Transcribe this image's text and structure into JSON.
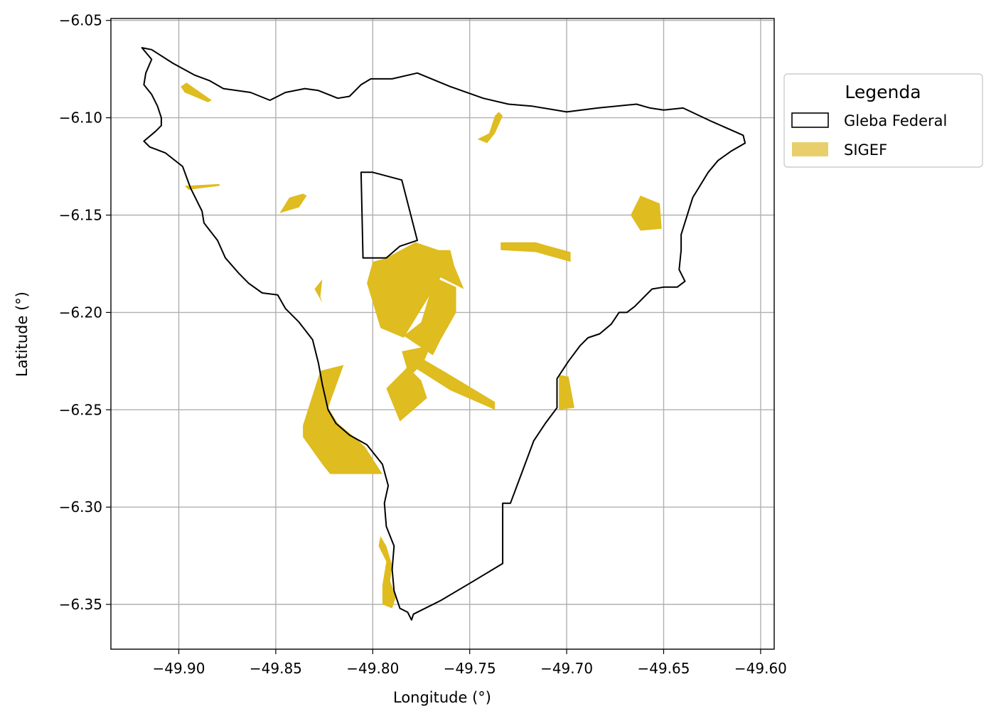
{
  "chart_data": {
    "type": "map",
    "xlabel": "Longitude (°)",
    "ylabel": "Latitude (°)",
    "xlim": [
      -49.935,
      -49.593
    ],
    "ylim": [
      -6.373,
      -6.049
    ],
    "xticks": [
      -49.9,
      -49.85,
      -49.8,
      -49.75,
      -49.7,
      -49.65,
      -49.6
    ],
    "xtick_labels": [
      "−49.90",
      "−49.85",
      "−49.80",
      "−49.75",
      "−49.70",
      "−49.65",
      "−49.60"
    ],
    "yticks": [
      -6.05,
      -6.1,
      -6.15,
      -6.2,
      -6.25,
      -6.3,
      -6.35
    ],
    "ytick_labels": [
      "−6.05",
      "−6.10",
      "−6.15",
      "−6.20",
      "−6.25",
      "−6.30",
      "−6.35"
    ],
    "grid": true,
    "legend": {
      "title": "Legenda",
      "placement": "outside-right-top",
      "entries": [
        {
          "label": "Gleba Federal",
          "style": "outline",
          "edge_color": "#000000",
          "fill_color": "#ffffff"
        },
        {
          "label": "SIGEF",
          "style": "fill",
          "fill_color": "#e8cf6c"
        }
      ]
    },
    "colors": {
      "gleba_edge": "#000000",
      "sigef_fill": "#dfbc1f",
      "grid": "#b0b0b0"
    },
    "gleba_federal": [
      {
        "name": "main",
        "coords": [
          [
            -49.919,
            -6.064
          ],
          [
            -49.914,
            -6.065
          ],
          [
            -49.903,
            -6.072
          ],
          [
            -49.892,
            -6.078
          ],
          [
            -49.884,
            -6.081
          ],
          [
            -49.877,
            -6.085
          ],
          [
            -49.863,
            -6.087
          ],
          [
            -49.853,
            -6.091
          ],
          [
            -49.845,
            -6.087
          ],
          [
            -49.835,
            -6.085
          ],
          [
            -49.828,
            -6.086
          ],
          [
            -49.818,
            -6.09
          ],
          [
            -49.812,
            -6.089
          ],
          [
            -49.806,
            -6.083
          ],
          [
            -49.801,
            -6.08
          ],
          [
            -49.79,
            -6.08
          ],
          [
            -49.777,
            -6.077
          ],
          [
            -49.76,
            -6.084
          ],
          [
            -49.743,
            -6.09
          ],
          [
            -49.73,
            -6.093
          ],
          [
            -49.718,
            -6.094
          ],
          [
            -49.7,
            -6.097
          ],
          [
            -49.684,
            -6.095
          ],
          [
            -49.664,
            -6.093
          ],
          [
            -49.657,
            -6.095
          ],
          [
            -49.65,
            -6.096
          ],
          [
            -49.64,
            -6.095
          ],
          [
            -49.625,
            -6.102
          ],
          [
            -49.609,
            -6.109
          ],
          [
            -49.608,
            -6.113
          ],
          [
            -49.615,
            -6.117
          ],
          [
            -49.622,
            -6.122
          ],
          [
            -49.627,
            -6.128
          ],
          [
            -49.635,
            -6.141
          ],
          [
            -49.641,
            -6.16
          ],
          [
            -49.641,
            -6.168
          ],
          [
            -49.642,
            -6.178
          ],
          [
            -49.639,
            -6.184
          ],
          [
            -49.643,
            -6.187
          ],
          [
            -49.65,
            -6.187
          ],
          [
            -49.656,
            -6.188
          ],
          [
            -49.661,
            -6.193
          ],
          [
            -49.665,
            -6.197
          ],
          [
            -49.669,
            -6.2
          ],
          [
            -49.673,
            -6.2
          ],
          [
            -49.677,
            -6.206
          ],
          [
            -49.683,
            -6.211
          ],
          [
            -49.689,
            -6.213
          ],
          [
            -49.693,
            -6.217
          ],
          [
            -49.699,
            -6.225
          ],
          [
            -49.705,
            -6.234
          ],
          [
            -49.705,
            -6.249
          ],
          [
            -49.711,
            -6.257
          ],
          [
            -49.717,
            -6.266
          ],
          [
            -49.723,
            -6.282
          ],
          [
            -49.729,
            -6.298
          ],
          [
            -49.733,
            -6.298
          ],
          [
            -49.733,
            -6.329
          ],
          [
            -49.748,
            -6.338
          ],
          [
            -49.765,
            -6.348
          ],
          [
            -49.779,
            -6.355
          ],
          [
            -49.78,
            -6.358
          ],
          [
            -49.782,
            -6.354
          ],
          [
            -49.786,
            -6.352
          ],
          [
            -49.789,
            -6.343
          ],
          [
            -49.79,
            -6.332
          ],
          [
            -49.789,
            -6.32
          ],
          [
            -49.793,
            -6.31
          ],
          [
            -49.794,
            -6.298
          ],
          [
            -49.792,
            -6.289
          ],
          [
            -49.795,
            -6.278
          ],
          [
            -49.803,
            -6.268
          ],
          [
            -49.812,
            -6.263
          ],
          [
            -49.819,
            -6.257
          ],
          [
            -49.823,
            -6.25
          ],
          [
            -49.826,
            -6.237
          ],
          [
            -49.828,
            -6.226
          ],
          [
            -49.831,
            -6.214
          ],
          [
            -49.838,
            -6.205
          ],
          [
            -49.845,
            -6.198
          ],
          [
            -49.849,
            -6.191
          ],
          [
            -49.857,
            -6.19
          ],
          [
            -49.864,
            -6.185
          ],
          [
            -49.869,
            -6.18
          ],
          [
            -49.876,
            -6.172
          ],
          [
            -49.88,
            -6.163
          ],
          [
            -49.887,
            -6.154
          ],
          [
            -49.888,
            -6.148
          ],
          [
            -49.894,
            -6.136
          ],
          [
            -49.898,
            -6.125
          ],
          [
            -49.907,
            -6.118
          ],
          [
            -49.915,
            -6.115
          ],
          [
            -49.918,
            -6.112
          ],
          [
            -49.912,
            -6.107
          ],
          [
            -49.909,
            -6.104
          ],
          [
            -49.909,
            -6.1
          ],
          [
            -49.911,
            -6.094
          ],
          [
            -49.914,
            -6.088
          ],
          [
            -49.918,
            -6.083
          ],
          [
            -49.917,
            -6.077
          ],
          [
            -49.914,
            -6.07
          ],
          [
            -49.919,
            -6.064
          ]
        ]
      },
      {
        "name": "north-enclave",
        "coords": [
          [
            -49.806,
            -6.128
          ],
          [
            -49.8,
            -6.128
          ],
          [
            -49.785,
            -6.132
          ],
          [
            -49.777,
            -6.163
          ],
          [
            -49.786,
            -6.166
          ],
          [
            -49.793,
            -6.172
          ],
          [
            -49.805,
            -6.172
          ],
          [
            -49.806,
            -6.128
          ]
        ]
      }
    ],
    "sigef": [
      {
        "coords": [
          [
            -49.899,
            -6.084
          ],
          [
            -49.896,
            -6.082
          ],
          [
            -49.883,
            -6.091
          ],
          [
            -49.885,
            -6.092
          ],
          [
            -49.897,
            -6.087
          ]
        ]
      },
      {
        "coords": [
          [
            -49.74,
            -6.108
          ],
          [
            -49.737,
            -6.099
          ],
          [
            -49.735,
            -6.097
          ],
          [
            -49.733,
            -6.099
          ],
          [
            -49.737,
            -6.108
          ],
          [
            -49.741,
            -6.113
          ],
          [
            -49.746,
            -6.111
          ]
        ]
      },
      {
        "coords": [
          [
            -49.897,
            -6.135
          ],
          [
            -49.879,
            -6.134
          ],
          [
            -49.879,
            -6.135
          ],
          [
            -49.895,
            -6.137
          ]
        ]
      },
      {
        "coords": [
          [
            -49.848,
            -6.149
          ],
          [
            -49.843,
            -6.141
          ],
          [
            -49.836,
            -6.139
          ],
          [
            -49.834,
            -6.14
          ],
          [
            -49.838,
            -6.146
          ]
        ]
      },
      {
        "coords": [
          [
            -49.662,
            -6.14
          ],
          [
            -49.652,
            -6.144
          ],
          [
            -49.651,
            -6.157
          ],
          [
            -49.662,
            -6.158
          ],
          [
            -49.667,
            -6.15
          ]
        ]
      },
      {
        "coords": [
          [
            -49.734,
            -6.164
          ],
          [
            -49.716,
            -6.164
          ],
          [
            -49.698,
            -6.169
          ],
          [
            -49.698,
            -6.174
          ],
          [
            -49.716,
            -6.169
          ],
          [
            -49.734,
            -6.168
          ]
        ]
      },
      {
        "coords": [
          [
            -49.826,
            -6.183
          ],
          [
            -49.83,
            -6.188
          ],
          [
            -49.826,
            -6.195
          ],
          [
            -49.827,
            -6.192
          ]
        ]
      },
      {
        "coords": [
          [
            -49.793,
            -6.172
          ],
          [
            -49.778,
            -6.164
          ],
          [
            -49.766,
            -6.168
          ],
          [
            -49.76,
            -6.168
          ],
          [
            -49.758,
            -6.176
          ],
          [
            -49.753,
            -6.188
          ],
          [
            -49.765,
            -6.182
          ],
          [
            -49.784,
            -6.213
          ],
          [
            -49.796,
            -6.208
          ],
          [
            -49.803,
            -6.185
          ],
          [
            -49.8,
            -6.174
          ]
        ]
      },
      {
        "coords": [
          [
            -49.768,
            -6.182
          ],
          [
            -49.757,
            -6.187
          ],
          [
            -49.757,
            -6.2
          ],
          [
            -49.765,
            -6.214
          ],
          [
            -49.769,
            -6.222
          ],
          [
            -49.784,
            -6.212
          ],
          [
            -49.775,
            -6.205
          ]
        ]
      },
      {
        "coords": [
          [
            -49.785,
            -6.22
          ],
          [
            -49.77,
            -6.217
          ],
          [
            -49.774,
            -6.226
          ],
          [
            -49.779,
            -6.231
          ],
          [
            -49.782,
            -6.23
          ]
        ]
      },
      {
        "coords": [
          [
            -49.779,
            -6.228
          ],
          [
            -49.774,
            -6.224
          ],
          [
            -49.762,
            -6.231
          ],
          [
            -49.737,
            -6.246
          ],
          [
            -49.737,
            -6.25
          ],
          [
            -49.76,
            -6.24
          ]
        ]
      },
      {
        "coords": [
          [
            -49.782,
            -6.228
          ],
          [
            -49.793,
            -6.239
          ],
          [
            -49.786,
            -6.256
          ],
          [
            -49.772,
            -6.244
          ],
          [
            -49.775,
            -6.235
          ]
        ]
      },
      {
        "coords": [
          [
            -49.704,
            -6.232
          ],
          [
            -49.699,
            -6.233
          ],
          [
            -49.696,
            -6.249
          ],
          [
            -49.704,
            -6.25
          ]
        ]
      },
      {
        "coords": [
          [
            -49.815,
            -6.227
          ],
          [
            -49.827,
            -6.23
          ],
          [
            -49.836,
            -6.258
          ],
          [
            -49.836,
            -6.264
          ],
          [
            -49.826,
            -6.278
          ],
          [
            -49.822,
            -6.283
          ],
          [
            -49.795,
            -6.283
          ],
          [
            -49.804,
            -6.269
          ],
          [
            -49.812,
            -6.262
          ],
          [
            -49.818,
            -6.257
          ],
          [
            -49.823,
            -6.249
          ]
        ]
      },
      {
        "coords": [
          [
            -49.796,
            -6.315
          ],
          [
            -49.793,
            -6.32
          ],
          [
            -49.79,
            -6.33
          ],
          [
            -49.791,
            -6.338
          ],
          [
            -49.788,
            -6.346
          ],
          [
            -49.79,
            -6.352
          ],
          [
            -49.795,
            -6.35
          ],
          [
            -49.795,
            -6.34
          ],
          [
            -49.793,
            -6.328
          ],
          [
            -49.797,
            -6.32
          ]
        ]
      }
    ]
  }
}
